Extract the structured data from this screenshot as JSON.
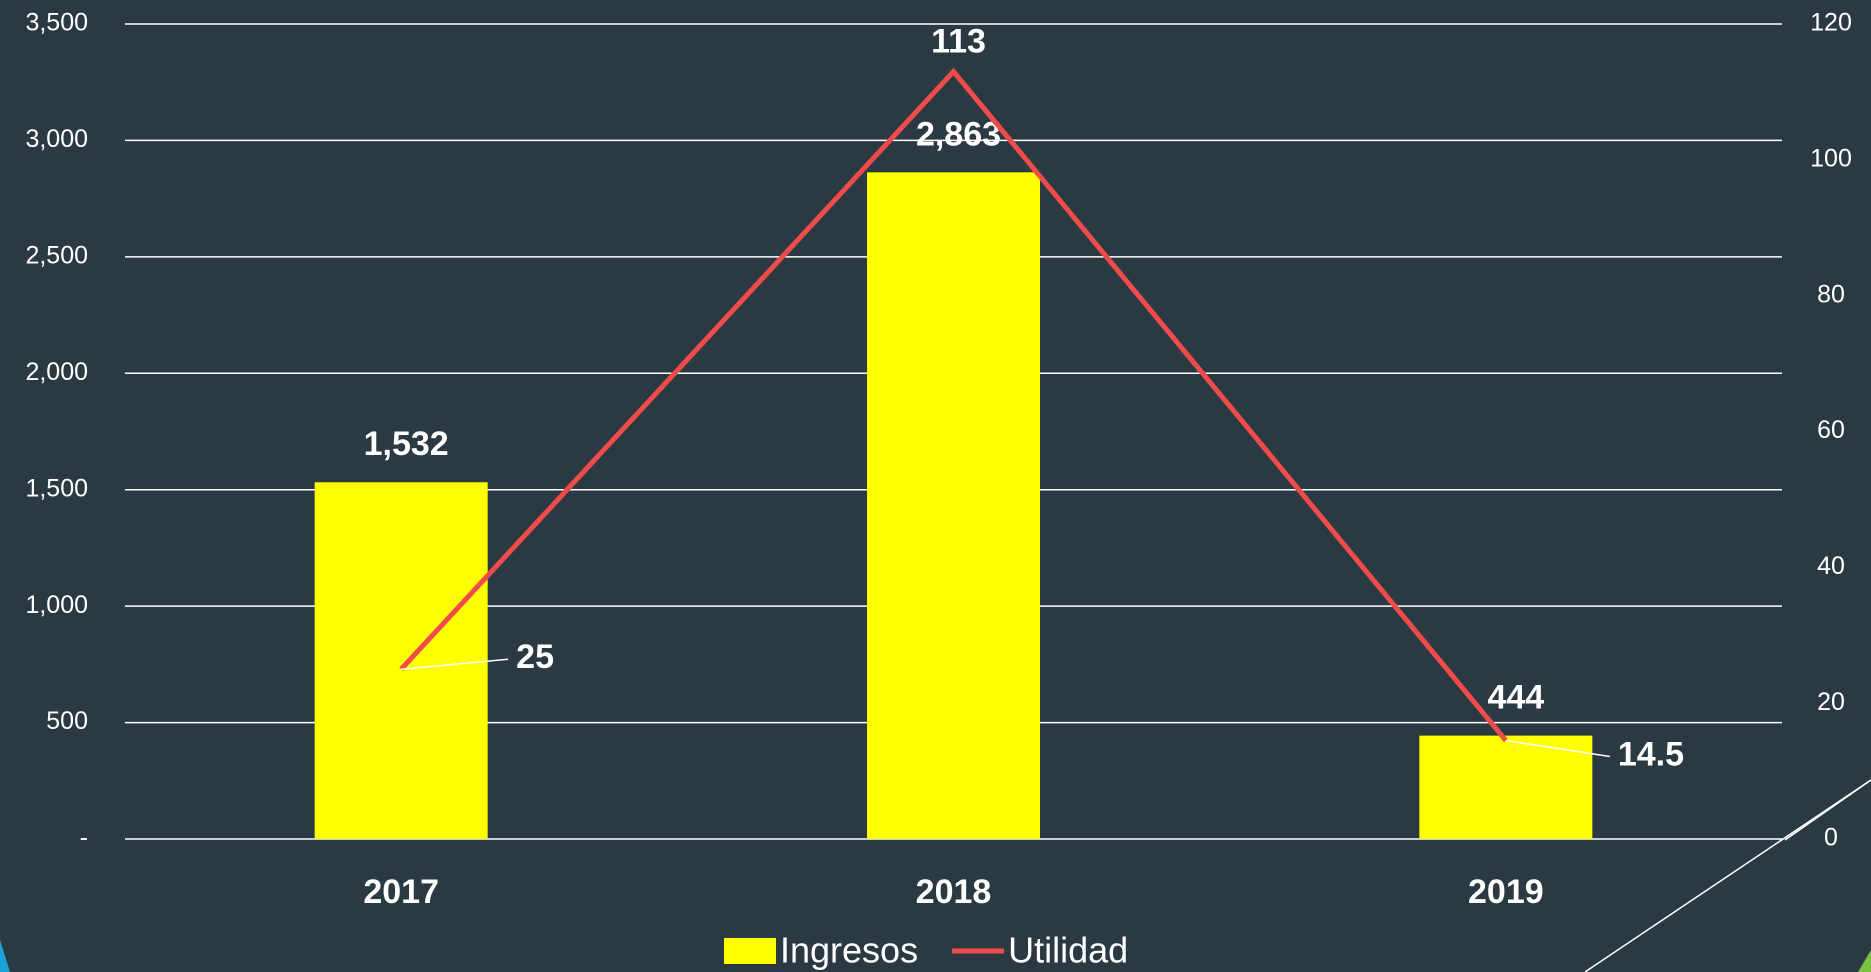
{
  "chart_data": {
    "type": "bar_line",
    "categories": [
      "2017",
      "2018",
      "2019"
    ],
    "series": [
      {
        "name": "Ingresos",
        "color": "#ffff00",
        "type": "bar",
        "values": [
          1532,
          2863,
          444
        ],
        "value_labels": [
          "1,532",
          "2,863",
          "444"
        ]
      },
      {
        "name": "Utilidad",
        "color": "#f04b4b",
        "type": "line",
        "axis": "y2",
        "values": [
          25,
          113,
          14.5
        ]
      }
    ],
    "ylim": [
      0,
      3500
    ],
    "yticks": [
      {
        "value": 0,
        "label": "-"
      },
      500,
      {
        "value": 1000,
        "label": "1,000"
      },
      {
        "value": 1500,
        "label": "1,500"
      },
      {
        "value": 2000,
        "label": "2,000"
      },
      {
        "value": 2500,
        "label": "2,500"
      },
      {
        "value": 3000,
        "label": "3,000"
      },
      {
        "value": 3500,
        "label": "3,500"
      }
    ],
    "y2lim": [
      0,
      120
    ],
    "y2ticks": [
      0,
      20,
      40,
      60,
      80,
      100,
      120
    ],
    "grid": true,
    "legend": "bottom"
  }
}
